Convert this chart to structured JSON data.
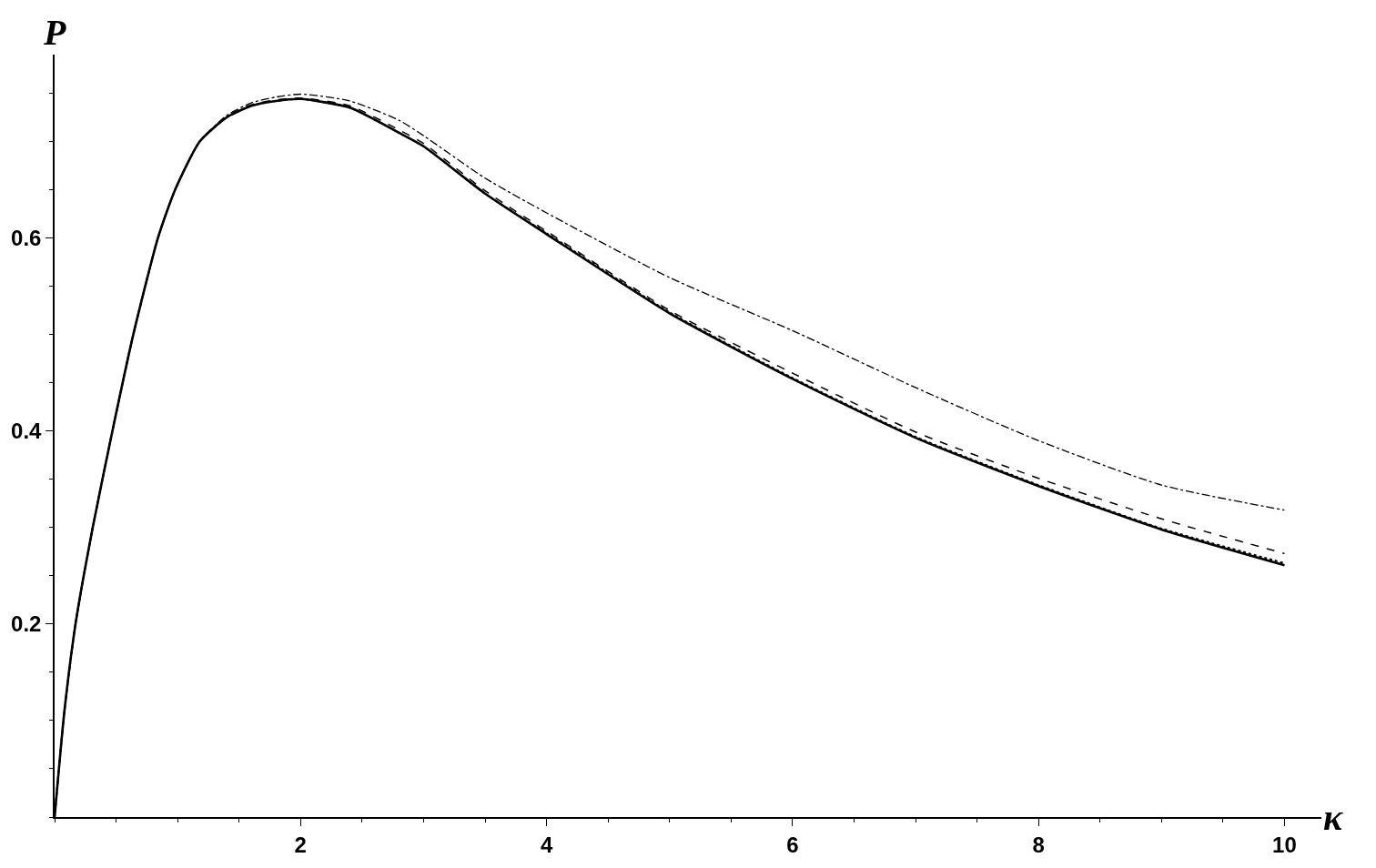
{
  "chart_data": {
    "type": "line",
    "xlabel": "κ",
    "ylabel": "P",
    "x": [
      0,
      0.08,
      0.17,
      0.31,
      0.47,
      0.64,
      0.84,
      0.98,
      1.18,
      1.4,
      1.6,
      1.8,
      2.0,
      2.4,
      2.8,
      3.0,
      3.5,
      4,
      5,
      6,
      7,
      8,
      9,
      10
    ],
    "series": [
      {
        "color": "#000000",
        "line_style": "solid",
        "values": [
          0,
          0.11,
          0.2,
          0.3,
          0.4,
          0.5,
          0.6,
          0.65,
          0.7,
          0.725,
          0.737,
          0.742,
          0.744,
          0.735,
          0.709,
          0.695,
          0.646,
          0.604,
          0.522,
          0.454,
          0.393,
          0.343,
          0.298,
          0.261
        ]
      },
      {
        "color": "#000000",
        "line_style": "dotted",
        "values": [
          0,
          0.11,
          0.2,
          0.3,
          0.4,
          0.5,
          0.6,
          0.65,
          0.7,
          0.725,
          0.737,
          0.742,
          0.744,
          0.735,
          0.709,
          0.695,
          0.646,
          0.605,
          0.523,
          0.455,
          0.394,
          0.344,
          0.299,
          0.263
        ]
      },
      {
        "color": "#000000",
        "line_style": "dashed",
        "values": [
          0,
          0.11,
          0.2,
          0.3,
          0.4,
          0.5,
          0.6,
          0.65,
          0.7,
          0.726,
          0.738,
          0.743,
          0.745,
          0.737,
          0.712,
          0.698,
          0.649,
          0.607,
          0.525,
          0.46,
          0.399,
          0.351,
          0.309,
          0.273
        ]
      },
      {
        "color": "#000000",
        "line_style": "dashdot",
        "values": [
          0,
          0.11,
          0.2,
          0.3,
          0.4,
          0.5,
          0.6,
          0.65,
          0.7,
          0.727,
          0.74,
          0.746,
          0.749,
          0.742,
          0.722,
          0.706,
          0.662,
          0.626,
          0.559,
          0.504,
          0.445,
          0.39,
          0.344,
          0.318
        ]
      }
    ],
    "xlim": [
      0,
      10.3
    ],
    "ylim": [
      0,
      0.79
    ],
    "xticks": [
      2,
      4,
      6,
      8,
      10
    ],
    "yticks": [
      0.2,
      0.4,
      0.6
    ]
  }
}
